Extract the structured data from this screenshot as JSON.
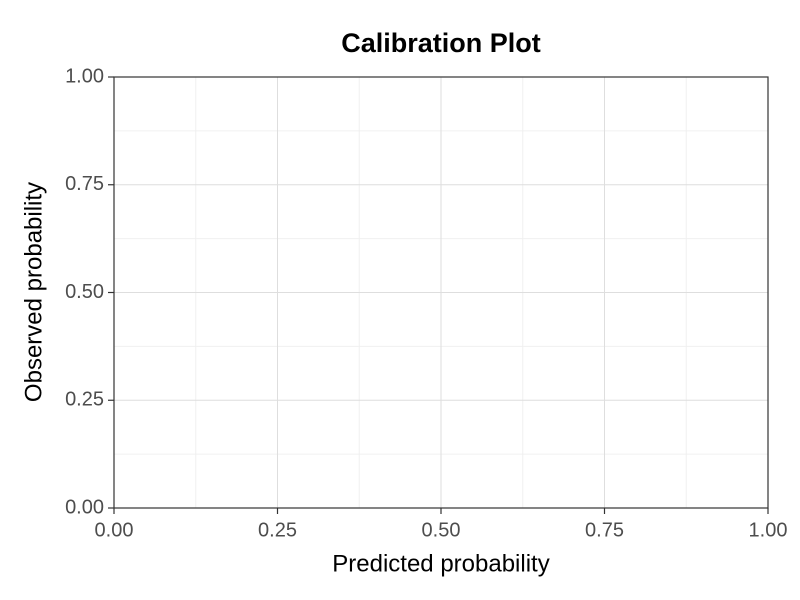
{
  "chart_data": {
    "type": "scatter",
    "title": "Calibration Plot",
    "x_label": "Predicted probability",
    "y_label": "Observed probability",
    "xlim": [
      0,
      1
    ],
    "ylim": [
      0,
      1
    ],
    "xticks": [
      {
        "value": 0,
        "label": "0.00"
      },
      {
        "value": 0.25,
        "label": "0.25"
      },
      {
        "value": 0.5,
        "label": "0.50"
      },
      {
        "value": 0.75,
        "label": "0.75"
      },
      {
        "value": 1,
        "label": "1.00"
      }
    ],
    "yticks": [
      {
        "value": 0,
        "label": "0.00"
      },
      {
        "value": 0.25,
        "label": "0.25"
      },
      {
        "value": 0.5,
        "label": "0.50"
      },
      {
        "value": 0.75,
        "label": "0.75"
      },
      {
        "value": 1,
        "label": "1.00"
      }
    ],
    "grid": true,
    "minor_grid": true
  }
}
